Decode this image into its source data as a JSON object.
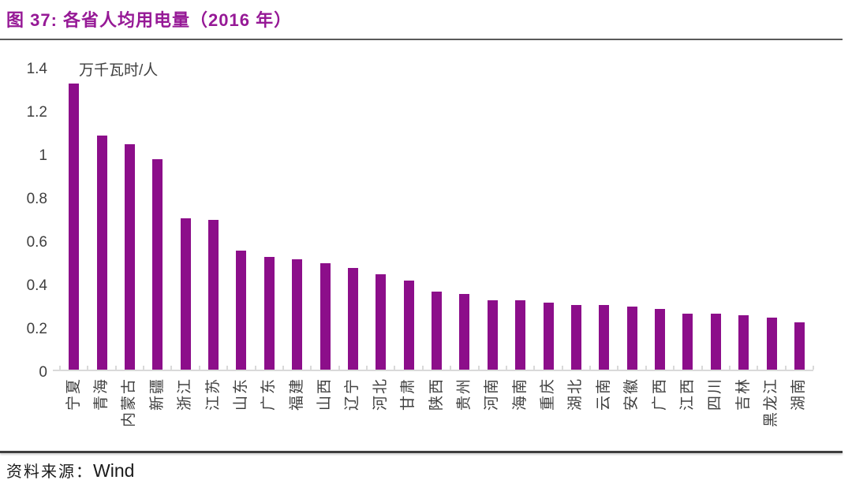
{
  "figure": {
    "title": "图 37:  各省人均用电量（2016 年）",
    "source_label": "资料来源：",
    "source_value": "Wind",
    "title_color": "#961996"
  },
  "chart_data": {
    "type": "bar",
    "title": "各省人均用电量（2016 年）",
    "xlabel": "",
    "ylabel": "万千瓦时/人",
    "ylim": [
      0,
      1.4
    ],
    "ytick_labels": [
      "1.4",
      "1.2",
      "1",
      "0.8",
      "0.6",
      "0.4",
      "0.2",
      "0"
    ],
    "grid": false,
    "legend": false,
    "bar_color": "#8C0E8A",
    "categories": [
      "宁夏",
      "青海",
      "内蒙古",
      "新疆",
      "浙江",
      "江苏",
      "山东",
      "广东",
      "福建",
      "山西",
      "辽宁",
      "河北",
      "甘肃",
      "陕西",
      "贵州",
      "河南",
      "海南",
      "重庆",
      "湖北",
      "云南",
      "安徽",
      "广西",
      "江西",
      "四川",
      "吉林",
      "黑龙江",
      "湖南"
    ],
    "values": [
      1.32,
      1.08,
      1.04,
      0.97,
      0.7,
      0.69,
      0.55,
      0.52,
      0.51,
      0.49,
      0.47,
      0.44,
      0.41,
      0.36,
      0.35,
      0.32,
      0.32,
      0.31,
      0.3,
      0.3,
      0.29,
      0.28,
      0.26,
      0.26,
      0.25,
      0.24,
      0.22
    ]
  }
}
